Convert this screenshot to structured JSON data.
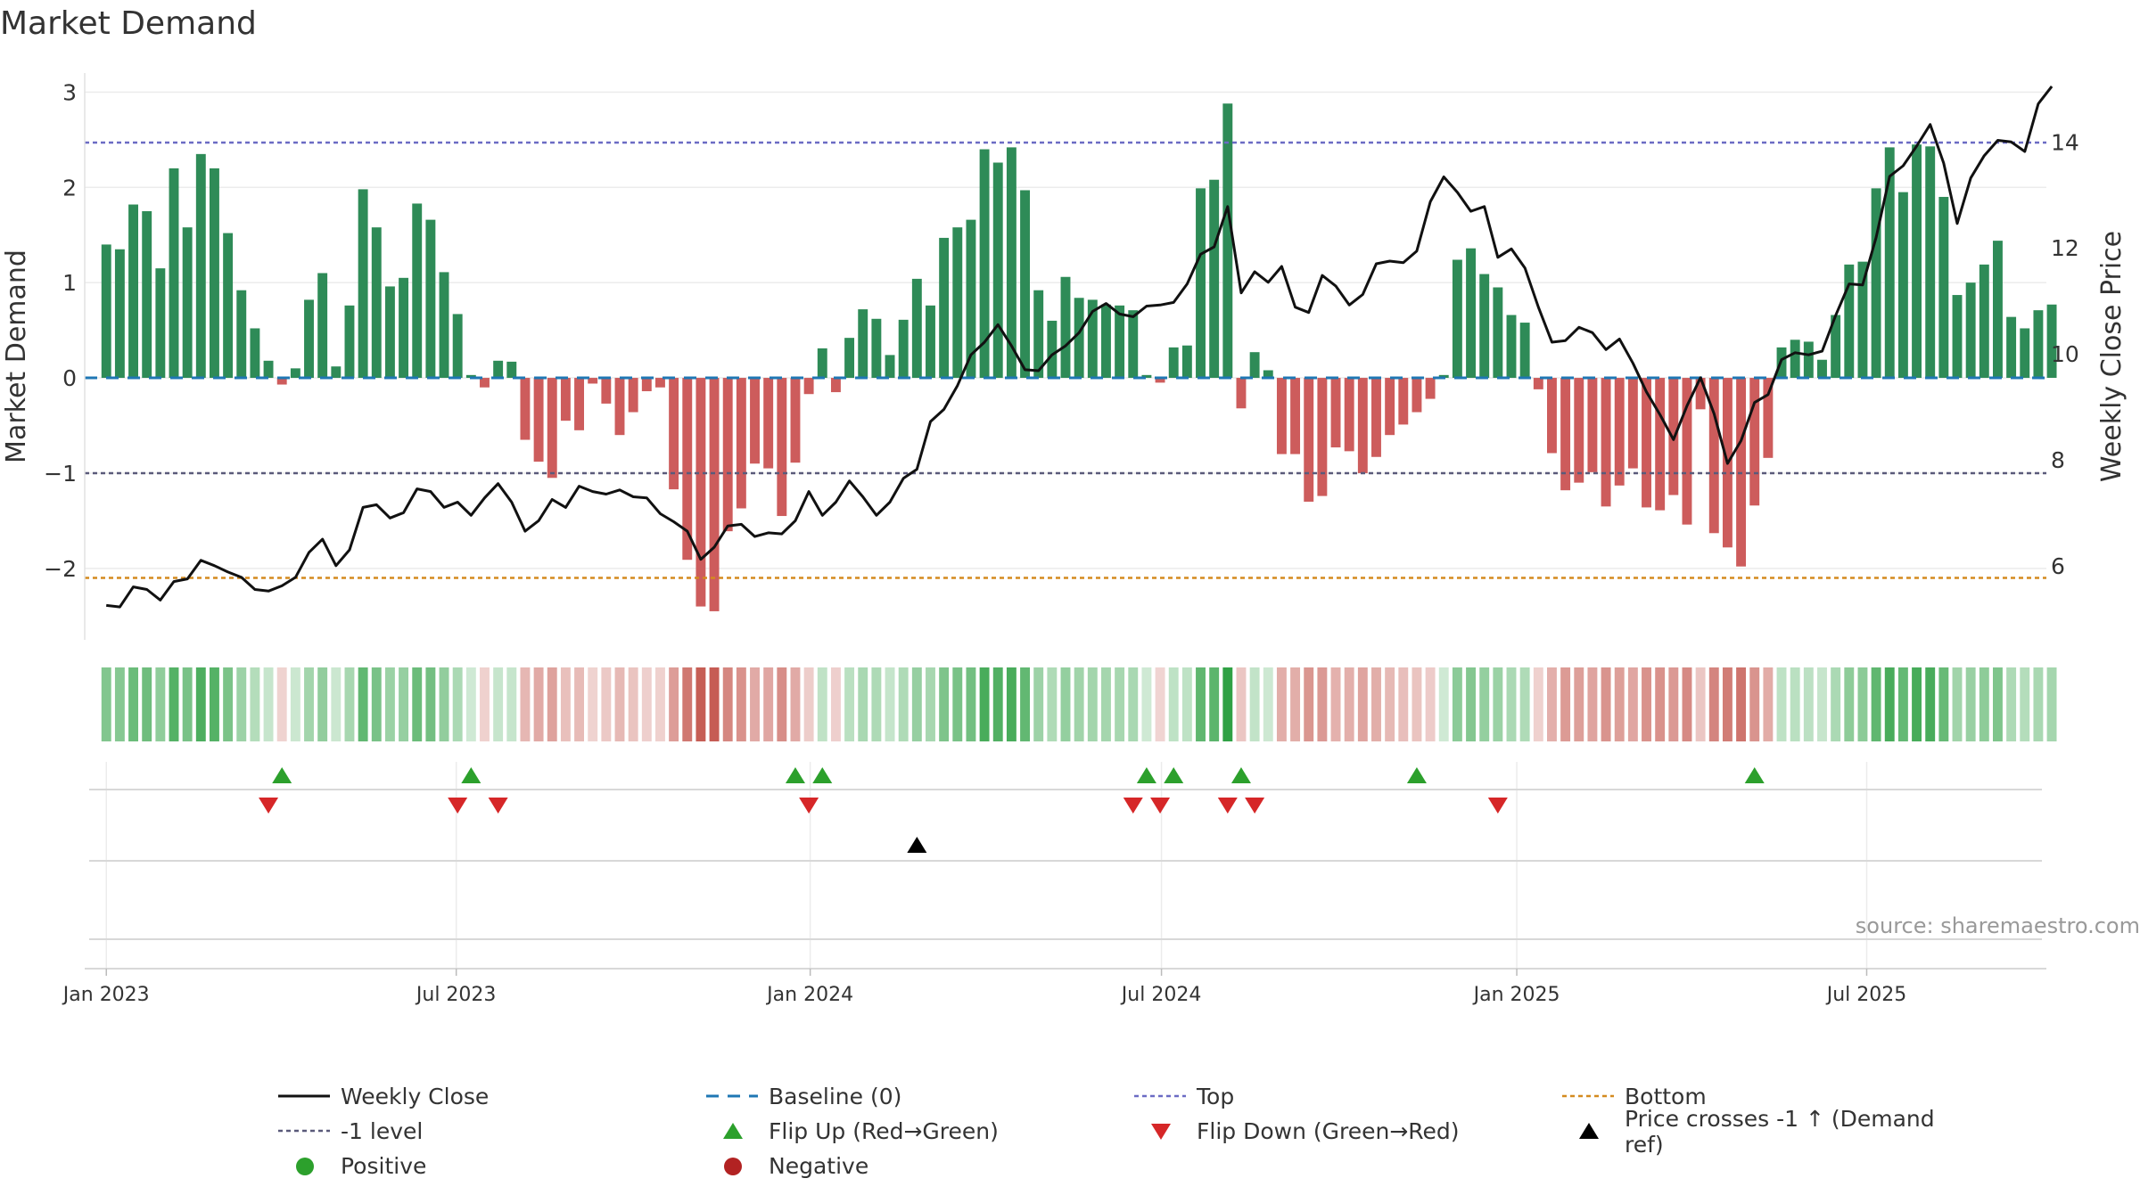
{
  "title": "Market Demand",
  "source": "source: sharemaestro.com",
  "chart_data": {
    "type": "bar",
    "title": "Market Demand",
    "ylabel_left": "Market Demand",
    "ylabel_right": "Weekly Close Price",
    "ylim_left": [
      -2.75,
      3.2
    ],
    "ylim_right": [
      4.6,
      15.3
    ],
    "left_ticks": [
      3,
      2,
      1,
      0,
      -1,
      -2
    ],
    "left_tick_labels": [
      "3",
      "2",
      "1",
      "0",
      "−1",
      "−2"
    ],
    "right_ticks": [
      14,
      12,
      10,
      8,
      6
    ],
    "right_tick_labels": [
      "14",
      "12",
      "10",
      "8",
      "6"
    ],
    "x_start_week": -1.6,
    "x_end_week": 143.6,
    "x_ticks": [
      {
        "label": "Jan 2023",
        "week": 0
      },
      {
        "label": "Jul 2023",
        "week": 25.9
      },
      {
        "label": "Jan 2024",
        "week": 52.1
      },
      {
        "label": "Jul 2024",
        "week": 78.1
      },
      {
        "label": "Jan 2025",
        "week": 104.4
      },
      {
        "label": "Jul 2025",
        "week": 130.3
      }
    ],
    "reference_lines": {
      "baseline": 0,
      "top": 2.47,
      "minus_one": -1,
      "bottom": -2.1
    },
    "series": [
      {
        "name": "Market Demand (weekly bars)",
        "values": [
          1.4,
          1.35,
          1.82,
          1.75,
          1.15,
          2.2,
          1.58,
          2.35,
          2.2,
          1.52,
          0.92,
          0.52,
          0.18,
          -0.07,
          0.1,
          0.82,
          1.1,
          0.12,
          0.76,
          1.98,
          1.58,
          0.96,
          1.05,
          1.83,
          1.66,
          1.11,
          0.67,
          0.03,
          -0.1,
          0.18,
          0.17,
          -0.65,
          -0.88,
          -1.05,
          -0.45,
          -0.55,
          -0.06,
          -0.27,
          -0.6,
          -0.36,
          -0.14,
          -0.1,
          -1.17,
          -1.91,
          -2.4,
          -2.45,
          -1.61,
          -1.37,
          -0.9,
          -0.95,
          -1.45,
          -0.89,
          -0.17,
          0.31,
          -0.15,
          0.42,
          0.72,
          0.62,
          0.24,
          0.61,
          1.04,
          0.76,
          1.47,
          1.58,
          1.66,
          2.4,
          2.26,
          2.42,
          1.97,
          0.92,
          0.6,
          1.06,
          0.84,
          0.82,
          0.77,
          0.76,
          0.71,
          0.03,
          -0.05,
          0.32,
          0.34,
          1.99,
          2.08,
          2.88,
          -0.32,
          0.27,
          0.08,
          -0.8,
          -0.8,
          -1.3,
          -1.24,
          -0.73,
          -0.77,
          -1.0,
          -0.83,
          -0.6,
          -0.49,
          -0.36,
          -0.22,
          0.03,
          1.24,
          1.36,
          1.09,
          0.95,
          0.66,
          0.58,
          -0.12,
          -0.79,
          -1.18,
          -1.1,
          -0.99,
          -1.35,
          -1.13,
          -0.95,
          -1.36,
          -1.39,
          -1.23,
          -1.54,
          -0.33,
          -1.63,
          -1.78,
          -1.98,
          -1.34,
          -0.84,
          0.32,
          0.4,
          0.38,
          0.19,
          0.66,
          1.19,
          1.22,
          1.99,
          2.42,
          1.95,
          2.45,
          2.43,
          1.9,
          0.87,
          1.0,
          1.19,
          1.44,
          0.64,
          0.52,
          0.71,
          0.77
        ]
      },
      {
        "name": "Weekly Close",
        "values": [
          5.25,
          5.22,
          5.6,
          5.55,
          5.35,
          5.7,
          5.75,
          6.1,
          6.0,
          5.88,
          5.78,
          5.55,
          5.52,
          5.62,
          5.78,
          6.25,
          6.5,
          6.0,
          6.3,
          7.1,
          7.15,
          6.9,
          7.0,
          7.45,
          7.4,
          7.1,
          7.2,
          6.95,
          7.28,
          7.55,
          7.2,
          6.65,
          6.85,
          7.25,
          7.1,
          7.5,
          7.4,
          7.35,
          7.43,
          7.3,
          7.28,
          6.98,
          6.83,
          6.65,
          6.12,
          6.35,
          6.75,
          6.78,
          6.55,
          6.62,
          6.6,
          6.85,
          7.4,
          6.95,
          7.2,
          7.6,
          7.3,
          6.95,
          7.2,
          7.65,
          7.82,
          8.72,
          8.95,
          9.4,
          9.98,
          10.22,
          10.55,
          10.15,
          9.7,
          9.68,
          9.98,
          10.15,
          10.4,
          10.8,
          10.95,
          10.75,
          10.7,
          10.9,
          10.92,
          10.97,
          11.32,
          11.88,
          12.02,
          12.78,
          11.15,
          11.55,
          11.35,
          11.65,
          10.88,
          10.78,
          11.48,
          11.28,
          10.92,
          11.12,
          11.7,
          11.75,
          11.72,
          11.94,
          12.87,
          13.34,
          13.05,
          12.69,
          12.78,
          11.82,
          11.98,
          11.62,
          10.88,
          10.22,
          10.25,
          10.5,
          10.4,
          10.08,
          10.28,
          9.82,
          9.28,
          8.85,
          8.38,
          9.02,
          9.55,
          8.87,
          7.93,
          8.36,
          9.08,
          9.23,
          9.89,
          10.02,
          9.98,
          10.05,
          10.72,
          11.32,
          11.3,
          12.2,
          13.35,
          13.55,
          13.92,
          14.33,
          13.6,
          12.46,
          13.32,
          13.74,
          14.03,
          14.0,
          13.82,
          14.72,
          15.05
        ]
      }
    ],
    "flip_up_weeks": [
      13,
      27,
      51,
      53,
      77,
      79,
      84,
      97,
      122
    ],
    "flip_down_weeks": [
      12,
      26,
      29,
      52,
      76,
      78,
      83,
      85,
      103
    ],
    "price_cross_weeks": [
      60
    ],
    "legend": [
      {
        "label": "Weekly Close",
        "symbol": "line",
        "color": "#111111"
      },
      {
        "label": "Baseline (0)",
        "symbol": "dash",
        "color": "#1f77b4"
      },
      {
        "label": "Top",
        "symbol": "dotted",
        "color": "#6b6bc4"
      },
      {
        "label": "Bottom",
        "symbol": "dotted",
        "color": "#d48a1f"
      },
      {
        "label": "-1 level",
        "symbol": "dotted",
        "color": "#5a5a7a"
      },
      {
        "label": "Flip Up (Red→Green)",
        "symbol": "triangle-up",
        "color": "#2ca02c"
      },
      {
        "label": "Flip Down (Green→Red)",
        "symbol": "triangle-down",
        "color": "#d62728"
      },
      {
        "label": "Price crosses -1 ↑ (Demand ref)",
        "symbol": "triangle-up",
        "color": "#000000"
      },
      {
        "label": "Positive",
        "symbol": "circle",
        "color": "#2ca02c"
      },
      {
        "label": "Negative",
        "symbol": "circle",
        "color": "#b22222"
      }
    ]
  },
  "colors": {
    "positive_bar": "#2e8b57",
    "negative_bar": "#cd5c5c",
    "close_line": "#111111",
    "baseline": "#1f77b4",
    "top_line": "#6b6bc4",
    "minus_one_line": "#5a5a7a",
    "bottom_line": "#d48a1f",
    "flip_up": "#2ca02c",
    "flip_down": "#d62728",
    "price_cross": "#000000",
    "heat_positive_rgb": "46,160,67",
    "heat_negative_rgb": "190,70,60"
  }
}
